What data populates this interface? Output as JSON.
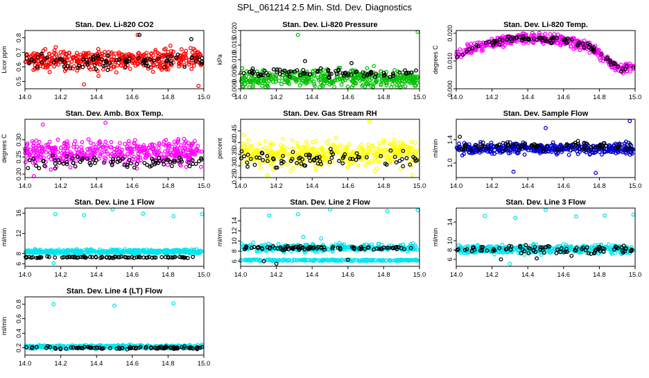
{
  "figure": {
    "title": "SPL_061214  2.5 Min. Std. Dev. Diagnostics"
  },
  "chart_data": [
    {
      "type": "scatter",
      "title": "Stan. Dev. Li-820 CO2",
      "xlabel": "",
      "ylabel": "Licor ppm",
      "xlim": [
        14.0,
        15.0
      ],
      "ylim": [
        0.45,
        0.85
      ],
      "xticks": [
        14.0,
        14.2,
        14.4,
        14.6,
        14.8,
        15.0
      ],
      "xtick_labels": [
        "14.0",
        "14.2",
        "14.4",
        "14.6",
        "14.8",
        "15.0"
      ],
      "yticks": [
        0.5,
        0.6,
        0.7,
        0.8
      ],
      "ytick_labels": [
        "0.5",
        "0.6",
        "0.7",
        "0.8"
      ],
      "series": [
        {
          "name": "primary",
          "color": "#ff0000",
          "n": 420,
          "center": 0.65,
          "spread": 0.06,
          "outliers": [
            [
              14.63,
              0.82
            ],
            [
              14.33,
              0.48
            ],
            [
              14.97,
              0.47
            ]
          ]
        },
        {
          "name": "overlay",
          "color": "#000000",
          "n": 80,
          "center": 0.64,
          "spread": 0.05,
          "outliers": [
            [
              14.93,
              0.79
            ],
            [
              14.64,
              0.82
            ]
          ]
        }
      ]
    },
    {
      "type": "scatter",
      "title": "Stan. Dev. Li-820 Pressure",
      "xlabel": "",
      "ylabel": "kPa",
      "xlim": [
        14.0,
        15.0
      ],
      "ylim": [
        0.0,
        0.02
      ],
      "xticks": [
        14.0,
        14.2,
        14.4,
        14.6,
        14.8,
        15.0
      ],
      "xtick_labels": [
        "14.0",
        "14.2",
        "14.4",
        "14.6",
        "14.8",
        "15.0"
      ],
      "yticks": [
        0.0,
        0.005,
        0.01,
        0.015,
        0.02
      ],
      "ytick_labels": [
        "0.000",
        "0.005",
        "0.010",
        "0.015",
        "0.020"
      ],
      "series": [
        {
          "name": "primary",
          "color": "#00c000",
          "n": 420,
          "center": 0.0035,
          "spread": 0.0025,
          "outliers": [
            [
              14.32,
              0.0185
            ],
            [
              14.99,
              0.0195
            ]
          ]
        },
        {
          "name": "overlay",
          "color": "#000000",
          "n": 80,
          "center": 0.0055,
          "spread": 0.0012,
          "outliers": [
            [
              14.36,
              0.0095
            ],
            [
              14.62,
              0.0088
            ]
          ]
        }
      ]
    },
    {
      "type": "scatter",
      "title": "Stan. Dev. Li-820 Temp.",
      "xlabel": "",
      "ylabel": "degrees C",
      "xlim": [
        14.0,
        15.0
      ],
      "ylim": [
        0.0,
        0.021
      ],
      "xticks": [
        14.0,
        14.2,
        14.4,
        14.6,
        14.8,
        15.0
      ],
      "xtick_labels": [
        "14.0",
        "14.2",
        "14.4",
        "14.6",
        "14.8",
        "15.0"
      ],
      "yticks": [
        0.0,
        0.01,
        0.02
      ],
      "ytick_labels": [
        "0.000",
        "0.010",
        "0.020"
      ],
      "series": [
        {
          "name": "primary",
          "color": "#ff00ff",
          "n": 420,
          "curve": [
            [
              14.0,
              0.012
            ],
            [
              14.15,
              0.016
            ],
            [
              14.35,
              0.0185
            ],
            [
              14.6,
              0.0175
            ],
            [
              14.75,
              0.015
            ],
            [
              14.85,
              0.01
            ],
            [
              14.92,
              0.0075
            ],
            [
              15.0,
              0.008
            ]
          ],
          "spread": 0.0015,
          "outliers": []
        },
        {
          "name": "overlay",
          "color": "#000000",
          "n": 90,
          "curve": [
            [
              14.0,
              0.012
            ],
            [
              14.15,
              0.016
            ],
            [
              14.35,
              0.0185
            ],
            [
              14.6,
              0.0175
            ],
            [
              14.75,
              0.015
            ],
            [
              14.85,
              0.01
            ],
            [
              14.92,
              0.0075
            ],
            [
              15.0,
              0.008
            ]
          ],
          "spread": 0.001,
          "outliers": []
        }
      ]
    },
    {
      "type": "scatter",
      "title": "Stan. Dev. Amb. Box Temp.",
      "xlabel": "",
      "ylabel": "degrees C",
      "xlim": [
        14.0,
        15.0
      ],
      "ylim": [
        0.19,
        0.36
      ],
      "xticks": [
        14.0,
        14.2,
        14.4,
        14.6,
        14.8,
        15.0
      ],
      "xtick_labels": [
        "14.0",
        "14.2",
        "14.4",
        "14.6",
        "14.8",
        "15.0"
      ],
      "yticks": [
        0.2,
        0.25,
        0.3
      ],
      "ytick_labels": [
        "0.20",
        "0.25",
        "0.30"
      ],
      "series": [
        {
          "name": "primary",
          "color": "#ff00ff",
          "n": 420,
          "center": 0.265,
          "spread": 0.03,
          "outliers": [
            [
              14.1,
              0.345
            ],
            [
              14.45,
              0.35
            ],
            [
              14.05,
              0.19
            ]
          ]
        },
        {
          "name": "overlay",
          "color": "#000000",
          "n": 80,
          "center": 0.235,
          "spread": 0.015,
          "outliers": []
        }
      ]
    },
    {
      "type": "scatter",
      "title": "Stan. Dev. Gas Stream RH",
      "xlabel": "",
      "ylabel": "percent",
      "xlim": [
        14.0,
        15.0
      ],
      "ylim": [
        0.25,
        0.5
      ],
      "xticks": [
        14.0,
        14.2,
        14.4,
        14.6,
        14.8,
        15.0
      ],
      "xtick_labels": [
        "14.0",
        "14.2",
        "14.4",
        "14.6",
        "14.8",
        "15.0"
      ],
      "yticks": [
        0.25,
        0.3,
        0.35,
        0.4,
        0.45
      ],
      "ytick_labels": [
        "0.25",
        "0.30",
        "0.35",
        "0.40",
        "0.45"
      ],
      "series": [
        {
          "name": "primary",
          "color": "#ffff00",
          "n": 420,
          "center": 0.35,
          "spread": 0.045,
          "outliers": [
            [
              14.72,
              0.49
            ],
            [
              14.15,
              0.26
            ],
            [
              14.96,
              0.26
            ]
          ]
        },
        {
          "name": "overlay",
          "color": "#000000",
          "n": 80,
          "center": 0.33,
          "spread": 0.03,
          "outliers": []
        }
      ]
    },
    {
      "type": "scatter",
      "title": "Stan. Dev. Sample Flow",
      "xlabel": "",
      "ylabel": "ml/min",
      "xlim": [
        14.0,
        15.0
      ],
      "ylim": [
        0.75,
        1.75
      ],
      "xticks": [
        14.0,
        14.2,
        14.4,
        14.6,
        14.8,
        15.0
      ],
      "xtick_labels": [
        "14.0",
        "14.2",
        "14.4",
        "14.6",
        "14.8",
        "15.0"
      ],
      "yticks": [
        1.0,
        1.4
      ],
      "ytick_labels": [
        "1.0",
        "1.4"
      ],
      "series": [
        {
          "name": "primary",
          "color": "#0000cc",
          "n": 420,
          "center": 1.25,
          "spread": 0.08,
          "outliers": [
            [
              14.97,
              1.72
            ],
            [
              14.5,
              1.6
            ],
            [
              14.32,
              0.85
            ],
            [
              14.78,
              0.83
            ]
          ]
        },
        {
          "name": "overlay",
          "color": "#000000",
          "n": 80,
          "center": 1.28,
          "spread": 0.07,
          "outliers": [
            [
              14.02,
              1.45
            ]
          ]
        }
      ]
    },
    {
      "type": "scatter",
      "title": "Stan. Dev. Line 1 Flow",
      "xlabel": "",
      "ylabel": "ml/min",
      "xlim": [
        14.0,
        15.0
      ],
      "ylim": [
        5.5,
        17.0
      ],
      "xticks": [
        14.0,
        14.2,
        14.4,
        14.6,
        14.8,
        15.0
      ],
      "xtick_labels": [
        "14.0",
        "14.2",
        "14.4",
        "14.6",
        "14.8",
        "15.0"
      ],
      "yticks": [
        6,
        8,
        12,
        16
      ],
      "ytick_labels": [
        "6",
        "8",
        "12",
        "16"
      ],
      "series": [
        {
          "name": "primary",
          "color": "#00e5ee",
          "n": 420,
          "center": 8.4,
          "spread": 0.35,
          "outliers": [
            [
              14.17,
              15.8
            ],
            [
              14.33,
              15.6
            ],
            [
              14.49,
              16.8
            ],
            [
              14.66,
              15.9
            ],
            [
              14.83,
              15.4
            ],
            [
              14.99,
              15.8
            ],
            [
              14.16,
              6.1
            ]
          ]
        },
        {
          "name": "overlay",
          "color": "#000000",
          "n": 90,
          "center": 7.3,
          "spread": 0.12,
          "outliers": []
        }
      ]
    },
    {
      "type": "scatter",
      "title": "Stan. Dev. Line 2 Flow",
      "xlabel": "",
      "ylabel": "ml/min",
      "xlim": [
        14.0,
        15.0
      ],
      "ylim": [
        5.0,
        16.5
      ],
      "xticks": [
        14.0,
        14.2,
        14.4,
        14.6,
        14.8,
        15.0
      ],
      "xtick_labels": [
        "14.0",
        "14.2",
        "14.4",
        "14.6",
        "14.8",
        "15.0"
      ],
      "yticks": [
        6,
        8,
        10,
        12,
        14
      ],
      "ytick_labels": [
        "6",
        "8",
        "10",
        "12",
        "14"
      ],
      "series": [
        {
          "name": "primary",
          "color": "#00e5ee",
          "n": 300,
          "center": 8.7,
          "spread": 0.6,
          "outliers": [
            [
              14.16,
              15.0
            ],
            [
              14.32,
              15.3
            ],
            [
              14.5,
              16.2
            ],
            [
              14.82,
              15.9
            ],
            [
              14.99,
              16.1
            ],
            [
              14.35,
              10.8
            ],
            [
              14.45,
              10.5
            ]
          ]
        },
        {
          "name": "secondary",
          "color": "#00e5ee",
          "n": 200,
          "center": 6.2,
          "spread": 0.12,
          "outliers": []
        },
        {
          "name": "overlay",
          "color": "#000000",
          "n": 90,
          "center": 8.6,
          "spread": 0.35,
          "outliers": [
            [
              14.2,
              5.5
            ],
            [
              14.13,
              6.0
            ],
            [
              14.6,
              6.3
            ]
          ]
        }
      ]
    },
    {
      "type": "scatter",
      "title": "Stan. Dev. Line 3 Flow",
      "xlabel": "",
      "ylabel": "ml/min",
      "xlim": [
        14.0,
        15.0
      ],
      "ylim": [
        4.5,
        17.0
      ],
      "xticks": [
        14.0,
        14.2,
        14.4,
        14.6,
        14.8,
        15.0
      ],
      "xtick_labels": [
        "14.0",
        "14.2",
        "14.4",
        "14.6",
        "14.8",
        "15.0"
      ],
      "yticks": [
        6,
        8,
        10,
        14
      ],
      "ytick_labels": [
        "6",
        "8",
        "10",
        "14"
      ],
      "series": [
        {
          "name": "primary",
          "color": "#00e5ee",
          "n": 420,
          "center": 8.2,
          "spread": 0.7,
          "outliers": [
            [
              14.16,
              15.3
            ],
            [
              14.33,
              14.9
            ],
            [
              14.5,
              16.6
            ],
            [
              14.67,
              15.2
            ],
            [
              14.83,
              15.4
            ],
            [
              14.99,
              15.6
            ],
            [
              14.3,
              5.0
            ]
          ]
        },
        {
          "name": "overlay",
          "color": "#000000",
          "n": 90,
          "center": 8.0,
          "spread": 0.8,
          "outliers": [
            [
              14.25,
              6.0
            ],
            [
              14.45,
              6.2
            ]
          ]
        }
      ]
    },
    {
      "type": "scatter",
      "title": "Stan. Dev. Line 4 (LT) Flow",
      "xlabel": "",
      "ylabel": "ml/min",
      "xlim": [
        14.0,
        15.0
      ],
      "ylim": [
        0.1,
        0.9
      ],
      "xticks": [
        14.0,
        14.2,
        14.4,
        14.6,
        14.8,
        15.0
      ],
      "xtick_labels": [
        "14.0",
        "14.2",
        "14.4",
        "14.6",
        "14.8",
        "15.0"
      ],
      "yticks": [
        0.2,
        0.4,
        0.6,
        0.8
      ],
      "ytick_labels": [
        "0.2",
        "0.4",
        "0.6",
        "0.8"
      ],
      "series": [
        {
          "name": "primary",
          "color": "#00e5ee",
          "n": 420,
          "center": 0.215,
          "spread": 0.018,
          "outliers": [
            [
              14.16,
              0.8
            ],
            [
              14.5,
              0.78
            ],
            [
              14.83,
              0.81
            ]
          ]
        },
        {
          "name": "overlay",
          "color": "#000000",
          "n": 90,
          "center": 0.2,
          "spread": 0.015,
          "outliers": []
        }
      ]
    }
  ]
}
